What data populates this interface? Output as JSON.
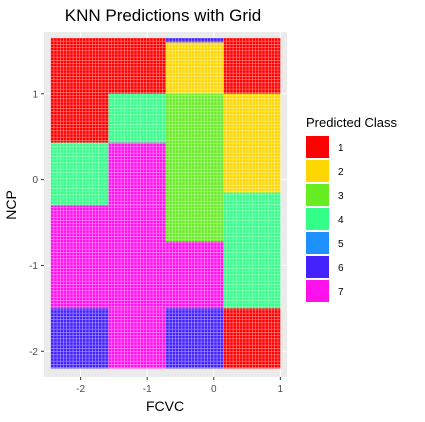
{
  "chart_data": {
    "type": "heatmap",
    "title": "KNN Predictions with Grid",
    "xlabel": "FCVC",
    "ylabel": "NCP",
    "xlim": [
      -2.55,
      1.1
    ],
    "ylim": [
      -2.3,
      1.72
    ],
    "x_ticks": [
      -2,
      -1,
      0,
      1
    ],
    "y_ticks": [
      -2,
      -1,
      0,
      1
    ],
    "x_tick_labels": [
      "-2",
      "-1",
      "0",
      "1"
    ],
    "y_tick_labels": [
      "-2",
      "-1",
      "0",
      "1"
    ],
    "grid": true,
    "legend_title": "Predicted Class",
    "legend_position": "right",
    "classes": [
      {
        "label": "1",
        "color": "#ff0000"
      },
      {
        "label": "2",
        "color": "#ffd700"
      },
      {
        "label": "3",
        "color": "#66ee22"
      },
      {
        "label": "4",
        "color": "#33ff88"
      },
      {
        "label": "5",
        "color": "#1e90ff"
      },
      {
        "label": "6",
        "color": "#4422ff"
      },
      {
        "label": "7",
        "color": "#ff11ee"
      }
    ],
    "grid_x_range": [
      -2.45,
      1.0
    ],
    "grid_y_range": [
      -2.2,
      1.65
    ],
    "regions": [
      {
        "class": "1",
        "x": [
          -2.45,
          -1.58
        ],
        "y": [
          0.43,
          1.65
        ]
      },
      {
        "class": "1",
        "x": [
          -1.58,
          -0.72
        ],
        "y": [
          1.0,
          1.65
        ]
      },
      {
        "class": "2",
        "x": [
          -0.72,
          0.15
        ],
        "y": [
          1.0,
          1.6
        ]
      },
      {
        "class": "6",
        "x": [
          -0.72,
          0.15
        ],
        "y": [
          1.6,
          1.65
        ]
      },
      {
        "class": "1",
        "x": [
          0.15,
          1.0
        ],
        "y": [
          1.0,
          1.65
        ]
      },
      {
        "class": "4",
        "x": [
          -1.58,
          -0.72
        ],
        "y": [
          0.43,
          1.0
        ]
      },
      {
        "class": "3",
        "x": [
          -0.72,
          0.15
        ],
        "y": [
          -0.72,
          1.0
        ]
      },
      {
        "class": "2",
        "x": [
          0.15,
          1.0
        ],
        "y": [
          -0.15,
          1.0
        ]
      },
      {
        "class": "4",
        "x": [
          -2.45,
          -1.58
        ],
        "y": [
          -0.3,
          0.43
        ]
      },
      {
        "class": "7",
        "x": [
          -1.58,
          -0.72
        ],
        "y": [
          -0.3,
          0.43
        ]
      },
      {
        "class": "7",
        "x": [
          -2.45,
          -0.72
        ],
        "y": [
          -1.5,
          -0.3
        ]
      },
      {
        "class": "4",
        "x": [
          0.15,
          1.0
        ],
        "y": [
          -1.5,
          -0.15
        ]
      },
      {
        "class": "7",
        "x": [
          -0.72,
          0.15
        ],
        "y": [
          -1.5,
          -0.72
        ]
      },
      {
        "class": "6",
        "x": [
          -2.45,
          -1.58
        ],
        "y": [
          -2.2,
          -1.5
        ]
      },
      {
        "class": "7",
        "x": [
          -1.58,
          -0.72
        ],
        "y": [
          -2.2,
          -1.5
        ]
      },
      {
        "class": "6",
        "x": [
          -0.72,
          0.15
        ],
        "y": [
          -2.2,
          -1.5
        ]
      },
      {
        "class": "1",
        "x": [
          0.15,
          1.0
        ],
        "y": [
          -2.2,
          -1.5
        ]
      }
    ]
  }
}
